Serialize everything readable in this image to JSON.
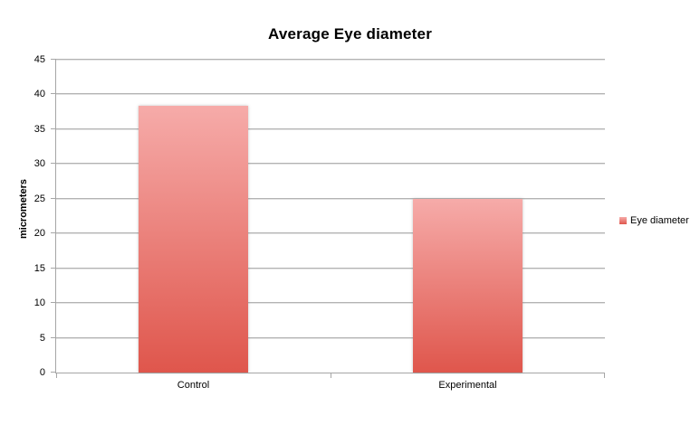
{
  "chart_data": {
    "type": "bar",
    "title": "Average Eye diameter",
    "categories": [
      "Control",
      "Experimental"
    ],
    "series": [
      {
        "name": "Eye diameter",
        "values": [
          38.4,
          25
        ]
      }
    ],
    "xlabel": "",
    "ylabel": "micrometers",
    "ylim": [
      0,
      45
    ],
    "ytick_step": 5,
    "grid": true,
    "legend_position": "right",
    "bar_color_top": "#f6abA9",
    "bar_color_bottom": "#df564c"
  },
  "legend": {
    "label": "Eye diameter"
  },
  "colors": {
    "gridline": "#b3b3b3",
    "axis": "#a6a6a6",
    "text": "#000000"
  }
}
